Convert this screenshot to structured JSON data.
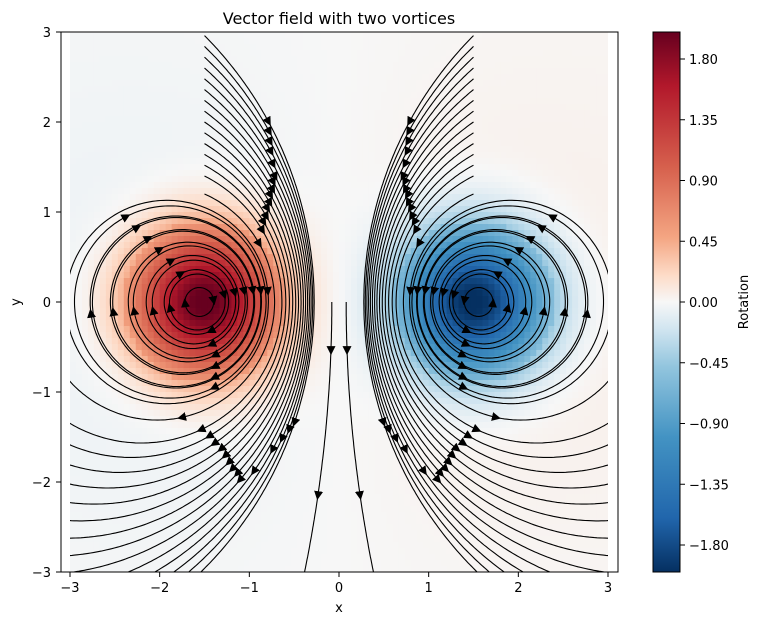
{
  "chart_data": {
    "type": "streamplot",
    "title": "Vector field with two vortices",
    "xlabel": "x",
    "ylabel": "y",
    "xlim": [
      -3,
      3
    ],
    "ylim": [
      -3,
      3
    ],
    "xticks": [
      -3,
      -2,
      -1,
      0,
      1,
      2,
      3
    ],
    "yticks": [
      -3,
      -2,
      -1,
      0,
      1,
      2,
      3
    ],
    "xtick_labels": [
      "−3",
      "−2",
      "−1",
      "0",
      "1",
      "2",
      "3"
    ],
    "ytick_labels": [
      "−3",
      "−2",
      "−1",
      "0",
      "1",
      "2",
      "3"
    ],
    "vortices": [
      {
        "x": -1.5,
        "y": 0,
        "rotation": 2.0,
        "direction": "counter-clockwise"
      },
      {
        "x": 1.5,
        "y": 0,
        "rotation": -2.0,
        "direction": "clockwise"
      }
    ],
    "field": "rotation = 2*exp(-((x+1.5)^2+y^2)/0.6) - 2*exp(-((x-1.5)^2+y^2)/0.6)",
    "colorbar": {
      "label": "Rotation",
      "colormap": "RdBu_r",
      "range": [
        -2,
        2
      ],
      "ticks": [
        1.8,
        1.35,
        0.9,
        0.45,
        0.0,
        -0.45,
        -0.9,
        -1.35,
        -1.8
      ],
      "tick_labels": [
        "1.80",
        "1.35",
        "0.90",
        "0.45",
        "0.00",
        "−0.45",
        "−0.90",
        "−1.35",
        "−1.80"
      ]
    }
  }
}
